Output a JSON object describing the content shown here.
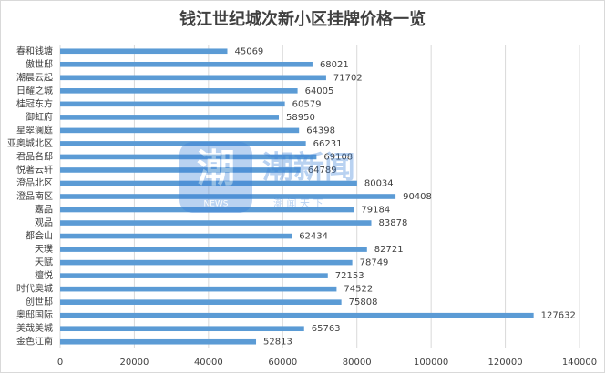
{
  "chart_data": {
    "type": "hbar",
    "title": "钱江世纪城次新小区挂牌价格一览",
    "categories": [
      "春和钱塘",
      "傲世邸",
      "潮晨云起",
      "日耀之城",
      "桂冠东方",
      "御虹府",
      "星翠澜庭",
      "亚奥城北区",
      "君品名邸",
      "悦著云轩",
      "澄品北区",
      "澄品南区",
      "嘉品",
      "观品",
      "都会山",
      "天璞",
      "天赋",
      "檀悦",
      "时代奥城",
      "创世邸",
      "奥邸国际",
      "美哉美城",
      "金色江南"
    ],
    "values": [
      45069,
      68021,
      71702,
      64005,
      60579,
      58950,
      64398,
      66231,
      69108,
      64789,
      80034,
      90408,
      79184,
      83878,
      62434,
      82721,
      78749,
      72153,
      74522,
      75808,
      127632,
      65763,
      52813
    ],
    "color": "#5b9bd5",
    "xlim": [
      0,
      140000
    ],
    "xticks": [
      0,
      20000,
      40000,
      60000,
      80000,
      100000,
      120000,
      140000
    ],
    "grid": true
  },
  "watermark": {
    "icon": "潮",
    "icon_sub": "NEWS",
    "name": "潮新闻",
    "slogan": "潮 闻 天 下"
  }
}
